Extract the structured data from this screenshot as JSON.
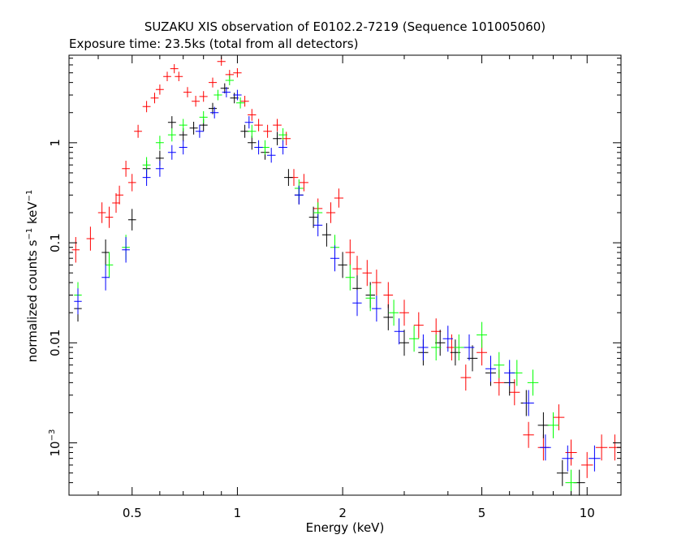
{
  "chart_data": {
    "type": "scatter",
    "title": "SUZAKU XIS observation of E0102.2-7219 (Sequence 101005060)",
    "subtitle": "Exposure time: 23.5ks (total from all detectors)",
    "xlabel": "Energy (keV)",
    "ylabel_parts": {
      "base": "normalized counts s",
      "exp1": "−1",
      "mid": " keV",
      "exp2": "−1"
    },
    "x_scale": "log",
    "y_scale": "log",
    "xlim": [
      0.33,
      12.5
    ],
    "ylim": [
      0.0003,
      7.5
    ],
    "x_ticks": [
      {
        "value": 0.5,
        "label": "0.5"
      },
      {
        "value": 1,
        "label": "1"
      },
      {
        "value": 2,
        "label": "2"
      },
      {
        "value": 5,
        "label": "5"
      },
      {
        "value": 10,
        "label": "10"
      }
    ],
    "y_ticks": [
      {
        "value": 1,
        "label": "1"
      },
      {
        "value": 0.1,
        "label": "0.1"
      },
      {
        "value": 0.01,
        "label": "0.01"
      },
      {
        "value": 0.001,
        "label": "10",
        "exp": "−3"
      }
    ],
    "grid": false,
    "series": [
      {
        "color": "#ff0000",
        "points": [
          [
            0.345,
            0.085
          ],
          [
            0.38,
            0.11
          ],
          [
            0.41,
            0.2
          ],
          [
            0.43,
            0.18
          ],
          [
            0.45,
            0.25
          ],
          [
            0.46,
            0.3
          ],
          [
            0.48,
            0.55
          ],
          [
            0.5,
            0.4
          ],
          [
            0.52,
            1.3
          ],
          [
            0.55,
            2.3
          ],
          [
            0.58,
            2.8
          ],
          [
            0.6,
            3.4
          ],
          [
            0.63,
            4.6
          ],
          [
            0.66,
            5.5
          ],
          [
            0.68,
            4.6
          ],
          [
            0.72,
            3.2
          ],
          [
            0.76,
            2.6
          ],
          [
            0.8,
            2.9
          ],
          [
            0.85,
            4.0
          ],
          [
            0.9,
            6.5
          ],
          [
            0.95,
            4.8
          ],
          [
            1.0,
            5.0
          ],
          [
            1.05,
            2.6
          ],
          [
            1.1,
            1.9
          ],
          [
            1.15,
            1.5
          ],
          [
            1.22,
            1.3
          ],
          [
            1.3,
            1.5
          ],
          [
            1.38,
            1.1
          ],
          [
            1.45,
            0.45
          ],
          [
            1.55,
            0.4
          ],
          [
            1.7,
            0.22
          ],
          [
            1.85,
            0.2
          ],
          [
            1.95,
            0.28
          ],
          [
            2.1,
            0.08
          ],
          [
            2.2,
            0.055
          ],
          [
            2.35,
            0.05
          ],
          [
            2.5,
            0.04
          ],
          [
            2.7,
            0.03
          ],
          [
            3.0,
            0.02
          ],
          [
            3.3,
            0.015
          ],
          [
            3.7,
            0.013
          ],
          [
            4.1,
            0.009
          ],
          [
            4.5,
            0.0045
          ],
          [
            5.0,
            0.008
          ],
          [
            5.6,
            0.004
          ],
          [
            6.2,
            0.0032
          ],
          [
            6.8,
            0.0012
          ],
          [
            7.5,
            0.0009
          ],
          [
            8.3,
            0.0018
          ],
          [
            9.0,
            0.0008
          ],
          [
            10.0,
            0.0006
          ],
          [
            11.0,
            0.0009
          ],
          [
            12.0,
            0.0009
          ]
        ]
      },
      {
        "color": "#000000",
        "points": [
          [
            0.35,
            0.022
          ],
          [
            0.42,
            0.08
          ],
          [
            0.5,
            0.17
          ],
          [
            0.55,
            0.55
          ],
          [
            0.6,
            0.7
          ],
          [
            0.65,
            1.6
          ],
          [
            0.7,
            1.2
          ],
          [
            0.75,
            1.4
          ],
          [
            0.8,
            1.5
          ],
          [
            0.85,
            2.2
          ],
          [
            0.92,
            3.5
          ],
          [
            0.98,
            2.8
          ],
          [
            1.05,
            1.3
          ],
          [
            1.1,
            1.0
          ],
          [
            1.2,
            0.8
          ],
          [
            1.3,
            1.1
          ],
          [
            1.4,
            0.45
          ],
          [
            1.5,
            0.3
          ],
          [
            1.65,
            0.18
          ],
          [
            1.8,
            0.12
          ],
          [
            2.0,
            0.06
          ],
          [
            2.2,
            0.035
          ],
          [
            2.4,
            0.03
          ],
          [
            2.7,
            0.018
          ],
          [
            3.0,
            0.01
          ],
          [
            3.4,
            0.008
          ],
          [
            3.8,
            0.01
          ],
          [
            4.2,
            0.008
          ],
          [
            4.7,
            0.007
          ],
          [
            5.3,
            0.005
          ],
          [
            6.0,
            0.004
          ],
          [
            6.7,
            0.0025
          ],
          [
            7.5,
            0.0015
          ],
          [
            8.5,
            0.0005
          ],
          [
            9.5,
            0.0004
          ]
        ]
      },
      {
        "color": "#00ff00",
        "points": [
          [
            0.35,
            0.03
          ],
          [
            0.43,
            0.06
          ],
          [
            0.48,
            0.09
          ],
          [
            0.55,
            0.6
          ],
          [
            0.6,
            1.0
          ],
          [
            0.65,
            1.2
          ],
          [
            0.7,
            1.5
          ],
          [
            0.8,
            1.8
          ],
          [
            0.88,
            3.0
          ],
          [
            0.95,
            4.2
          ],
          [
            1.02,
            2.5
          ],
          [
            1.1,
            1.3
          ],
          [
            1.2,
            0.9
          ],
          [
            1.35,
            1.2
          ],
          [
            1.5,
            0.35
          ],
          [
            1.7,
            0.2
          ],
          [
            1.9,
            0.09
          ],
          [
            2.1,
            0.045
          ],
          [
            2.4,
            0.028
          ],
          [
            2.8,
            0.02
          ],
          [
            3.2,
            0.011
          ],
          [
            3.7,
            0.009
          ],
          [
            4.3,
            0.009
          ],
          [
            5.0,
            0.012
          ],
          [
            5.6,
            0.006
          ],
          [
            6.3,
            0.005
          ],
          [
            7.0,
            0.004
          ],
          [
            8.0,
            0.0015
          ],
          [
            9.0,
            0.0004
          ]
        ]
      },
      {
        "color": "#0000ff",
        "points": [
          [
            0.35,
            0.026
          ],
          [
            0.42,
            0.045
          ],
          [
            0.48,
            0.085
          ],
          [
            0.55,
            0.45
          ],
          [
            0.6,
            0.55
          ],
          [
            0.65,
            0.8
          ],
          [
            0.7,
            0.9
          ],
          [
            0.78,
            1.3
          ],
          [
            0.86,
            2.0
          ],
          [
            0.93,
            3.2
          ],
          [
            1.0,
            3.0
          ],
          [
            1.08,
            1.6
          ],
          [
            1.15,
            0.9
          ],
          [
            1.25,
            0.75
          ],
          [
            1.35,
            0.9
          ],
          [
            1.5,
            0.3
          ],
          [
            1.7,
            0.15
          ],
          [
            1.9,
            0.07
          ],
          [
            2.2,
            0.025
          ],
          [
            2.5,
            0.022
          ],
          [
            2.9,
            0.013
          ],
          [
            3.4,
            0.009
          ],
          [
            4.0,
            0.011
          ],
          [
            4.6,
            0.009
          ],
          [
            5.3,
            0.0055
          ],
          [
            6.0,
            0.005
          ],
          [
            6.8,
            0.0025
          ],
          [
            7.6,
            0.0009
          ],
          [
            8.8,
            0.0007
          ],
          [
            10.5,
            0.0007
          ]
        ]
      }
    ]
  }
}
